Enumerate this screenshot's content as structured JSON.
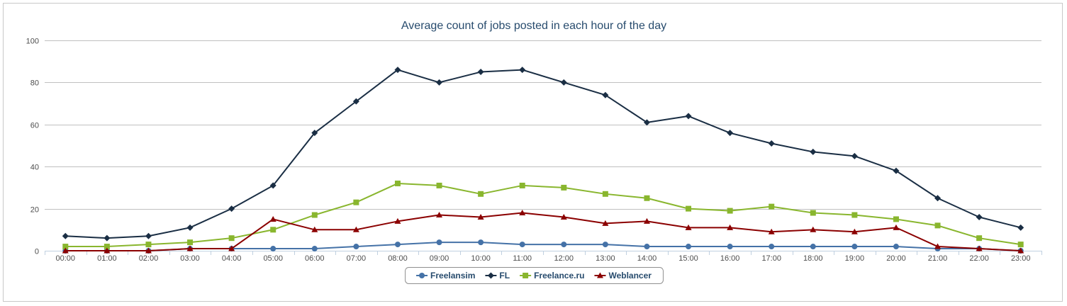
{
  "chart_data": {
    "type": "line",
    "title": "Average count of jobs posted in each hour of the day",
    "xlabel": "",
    "ylabel": "",
    "ylim": [
      0,
      100
    ],
    "yticks": [
      0,
      20,
      40,
      60,
      80,
      100
    ],
    "grid": true,
    "legend_position": "bottom-center",
    "categories": [
      "00:00",
      "01:00",
      "02:00",
      "03:00",
      "04:00",
      "05:00",
      "06:00",
      "07:00",
      "08:00",
      "09:00",
      "10:00",
      "11:00",
      "12:00",
      "13:00",
      "14:00",
      "15:00",
      "16:00",
      "17:00",
      "18:00",
      "19:00",
      "20:00",
      "21:00",
      "22:00",
      "23:00"
    ],
    "series": [
      {
        "name": "Freelansim",
        "color": "#4572a7",
        "marker": "circle",
        "values": [
          0,
          0,
          0,
          1,
          1,
          1,
          1,
          2,
          3,
          4,
          4,
          3,
          3,
          3,
          2,
          2,
          2,
          2,
          2,
          2,
          2,
          1,
          1,
          0
        ]
      },
      {
        "name": "FL",
        "color": "#1a2e44",
        "marker": "diamond",
        "values": [
          7,
          6,
          7,
          11,
          20,
          31,
          56,
          71,
          86,
          80,
          85,
          86,
          80,
          74,
          61,
          64,
          56,
          51,
          47,
          45,
          38,
          25,
          16,
          11
        ]
      },
      {
        "name": "Freelance.ru",
        "color": "#89b62e",
        "marker": "square",
        "values": [
          2,
          2,
          3,
          4,
          6,
          10,
          17,
          23,
          32,
          31,
          27,
          31,
          30,
          27,
          25,
          20,
          19,
          21,
          18,
          17,
          15,
          12,
          6,
          3
        ]
      },
      {
        "name": "Weblancer",
        "color": "#8b0000",
        "marker": "triangle",
        "values": [
          0,
          0,
          0,
          1,
          1,
          15,
          10,
          10,
          14,
          17,
          16,
          18,
          16,
          13,
          14,
          11,
          11,
          9,
          10,
          9,
          11,
          2,
          1,
          0
        ]
      }
    ]
  }
}
